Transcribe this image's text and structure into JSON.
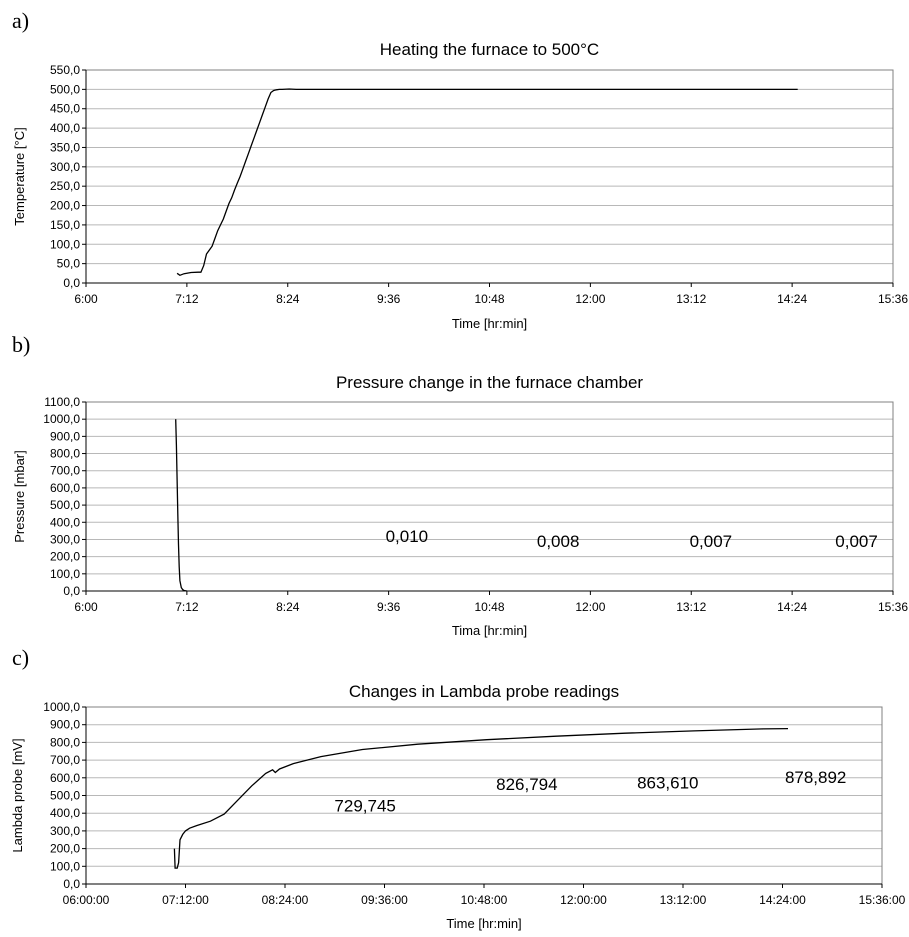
{
  "panels": [
    {
      "label": "a)"
    },
    {
      "label": "b)"
    },
    {
      "label": "c)"
    }
  ],
  "chart_data": [
    {
      "type": "line",
      "title": "Heating the furnace to 500°C",
      "xlabel": "Time [hr:min]",
      "ylabel": "Temperature [°C]",
      "xlim": [
        360,
        936
      ],
      "ylim": [
        0,
        550
      ],
      "x_ticks": [
        360,
        432,
        504,
        576,
        648,
        720,
        792,
        864,
        936
      ],
      "x_tick_labels": [
        "6:00",
        "7:12",
        "8:24",
        "9:36",
        "10:48",
        "12:00",
        "13:12",
        "14:24",
        "15:36"
      ],
      "y_ticks": [
        0,
        50,
        100,
        150,
        200,
        250,
        300,
        350,
        400,
        450,
        500,
        550
      ],
      "y_tick_labels": [
        "0,0",
        "50,0",
        "100,0",
        "150,0",
        "200,0",
        "250,0",
        "300,0",
        "350,0",
        "400,0",
        "450,0",
        "500,0",
        "550,0"
      ],
      "grid": "horizontal",
      "x_units": "minutes since midnight",
      "series": [
        {
          "color": "#000000",
          "x": [
            425,
            427,
            430,
            435,
            440,
            442,
            444,
            446,
            448,
            450,
            452,
            454,
            456,
            458,
            460,
            462,
            464,
            466,
            468,
            470,
            472,
            474,
            476,
            478,
            480,
            482,
            484,
            486,
            488,
            490,
            492,
            494,
            496,
            498,
            500,
            505,
            510,
            520,
            540,
            560,
            600,
            650,
            700,
            750,
            800,
            850,
            868
          ],
          "y": [
            25,
            20,
            24,
            27,
            28,
            28,
            45,
            75,
            85,
            95,
            115,
            135,
            150,
            165,
            185,
            205,
            220,
            240,
            258,
            275,
            295,
            315,
            335,
            355,
            375,
            395,
            415,
            435,
            455,
            475,
            492,
            497,
            499,
            500,
            500,
            501,
            500,
            500,
            500,
            500,
            500,
            500,
            500,
            500,
            500,
            500,
            500
          ]
        }
      ],
      "annotations": []
    },
    {
      "type": "line",
      "title": "Pressure change in the furnace chamber",
      "xlabel": "Tima [hr:min]",
      "ylabel": "Pressure [mbar]",
      "xlim": [
        360,
        936
      ],
      "ylim": [
        0,
        1100
      ],
      "x_ticks": [
        360,
        432,
        504,
        576,
        648,
        720,
        792,
        864,
        936
      ],
      "x_tick_labels": [
        "6:00",
        "7:12",
        "8:24",
        "9:36",
        "10:48",
        "12:00",
        "13:12",
        "14:24",
        "15:36"
      ],
      "y_ticks": [
        0,
        100,
        200,
        300,
        400,
        500,
        600,
        700,
        800,
        900,
        1000,
        1100
      ],
      "y_tick_labels": [
        "0,0",
        "100,0",
        "200,0",
        "300,0",
        "400,0",
        "500,0",
        "600,0",
        "700,0",
        "800,0",
        "900,0",
        "1000,0",
        "1100,0"
      ],
      "grid": "horizontal",
      "x_units": "minutes since midnight",
      "series": [
        {
          "color": "#000000",
          "x": [
            424,
            424.5,
            425,
            425.5,
            426,
            426.5,
            427,
            428,
            429,
            430,
            432
          ],
          "y": [
            1000,
            850,
            650,
            450,
            270,
            140,
            60,
            20,
            8,
            3,
            0
          ]
        }
      ],
      "annotations": [
        {
          "text": "0,010",
          "x": 589,
          "y": 285
        },
        {
          "text": "0,008",
          "x": 697,
          "y": 257
        },
        {
          "text": "0,007",
          "x": 806,
          "y": 257
        },
        {
          "text": "0,007",
          "x": 910,
          "y": 257
        }
      ]
    },
    {
      "type": "line",
      "title": "Changes in  Lambda probe readings",
      "xlabel": "Time [hr:min]",
      "ylabel": "Lambda probe [mV]",
      "xlim": [
        360,
        936
      ],
      "ylim": [
        0,
        1000
      ],
      "x_ticks": [
        360,
        432,
        504,
        576,
        648,
        720,
        792,
        864,
        936
      ],
      "x_tick_labels": [
        "06:00:00",
        "07:12:00",
        "08:24:00",
        "09:36:00",
        "10:48:00",
        "12:00:00",
        "13:12:00",
        "14:24:00",
        "15:36:00"
      ],
      "y_ticks": [
        0,
        100,
        200,
        300,
        400,
        500,
        600,
        700,
        800,
        900,
        1000
      ],
      "y_tick_labels": [
        "0,0",
        "100,0",
        "200,0",
        "300,0",
        "400,0",
        "500,0",
        "600,0",
        "700,0",
        "800,0",
        "900,0",
        "1000,0"
      ],
      "grid": "horizontal",
      "x_units": "minutes since midnight",
      "series": [
        {
          "color": "#000000",
          "x": [
            424,
            424.5,
            426,
            427,
            428,
            430,
            432,
            435,
            440,
            450,
            460,
            470,
            480,
            490,
            495,
            497,
            500,
            510,
            530,
            560,
            600,
            650,
            700,
            750,
            800,
            850,
            868
          ],
          "y": [
            200,
            90,
            90,
            120,
            250,
            280,
            300,
            315,
            330,
            355,
            395,
            475,
            555,
            625,
            645,
            630,
            650,
            680,
            720,
            760,
            790,
            815,
            835,
            852,
            865,
            876,
            878
          ]
        }
      ],
      "annotations": [
        {
          "text": "729,745",
          "x": 562,
          "y": 410
        },
        {
          "text": "826,794",
          "x": 679,
          "y": 530
        },
        {
          "text": "863,610",
          "x": 781,
          "y": 540
        },
        {
          "text": "878,892",
          "x": 888,
          "y": 570
        }
      ]
    }
  ]
}
